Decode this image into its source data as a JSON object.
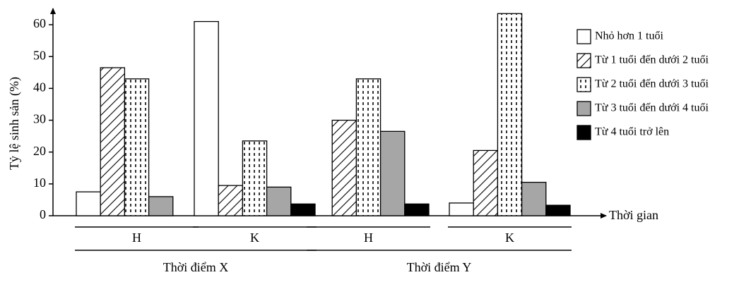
{
  "chart_data": {
    "type": "bar",
    "y_label": "Tỷ lệ sinh sản (%)",
    "x_label": "Thời gian",
    "categories": [
      "H",
      "K",
      "H",
      "K"
    ],
    "category_groups": [
      "Thời điểm X",
      "Thời điểm Y"
    ],
    "series": [
      {
        "name": "Nhỏ hơn 1 tuổi",
        "color": "#ffffff",
        "pattern": "solid",
        "values": [
          7.5,
          61,
          null,
          4
        ]
      },
      {
        "name": "Từ 1 tuổi đến dưới 2 tuổi",
        "color": "#000000",
        "pattern": "hatch",
        "values": [
          46.5,
          9.5,
          30,
          20.5
        ]
      },
      {
        "name": "Từ 2 tuổi đến dưới 3 tuổi",
        "color": "#000000",
        "pattern": "dots",
        "values": [
          43,
          23.5,
          43,
          63.5
        ]
      },
      {
        "name": "Từ 3 tuổi đến dưới 4 tuổi",
        "color": "#a6a6a6",
        "pattern": "solid",
        "values": [
          6,
          9,
          26.5,
          10.5
        ]
      },
      {
        "name": "Từ 4 tuổi trở lên",
        "color": "#000000",
        "pattern": "solid",
        "values": [
          null,
          3.7,
          3.7,
          3.3
        ]
      }
    ],
    "ylim": [
      0,
      64
    ],
    "yticks": [
      0,
      10,
      20,
      30,
      40,
      50,
      60
    ],
    "grid": false,
    "legend": "right"
  }
}
